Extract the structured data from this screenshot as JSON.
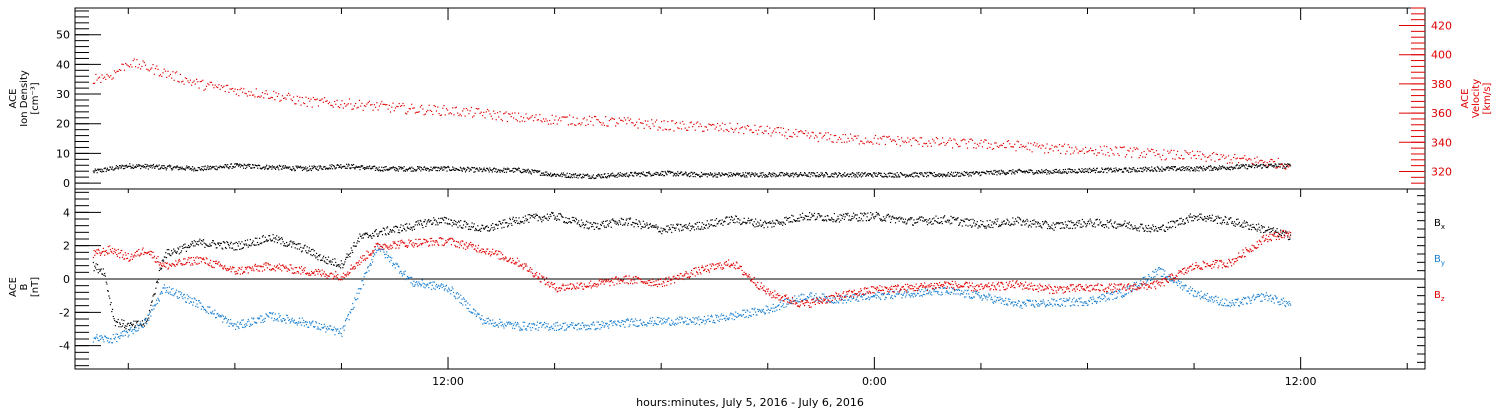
{
  "chart_data": [
    {
      "type": "scatter",
      "panel": "top",
      "ylabel_lines": [
        "ACE",
        "Ion Density",
        "[cm⁻³]"
      ],
      "ylim": [
        -2,
        59
      ],
      "yticks": [
        0,
        10,
        20,
        30,
        40,
        50
      ],
      "y2label_lines": [
        "ACE",
        "Velocity",
        "[km/s]"
      ],
      "y2lim": [
        308,
        432
      ],
      "y2ticks": [
        320,
        340,
        360,
        380,
        400,
        420
      ],
      "y2_color": "#e00000",
      "series": [
        {
          "name": "Ion Density",
          "axis": "left",
          "color": "#000000",
          "x_hours": [
            2,
            2.5,
            3,
            4,
            5,
            6,
            7,
            8,
            9,
            10,
            11,
            12,
            13,
            14,
            15,
            16,
            17,
            18,
            19,
            20,
            21,
            22,
            23,
            24,
            25,
            26,
            27,
            28,
            29,
            30,
            31,
            32,
            33,
            34,
            35,
            35.7
          ],
          "values": [
            4,
            5,
            6,
            5.5,
            5,
            6,
            5.5,
            5,
            6,
            5,
            5,
            5,
            4.5,
            4.5,
            3,
            2.5,
            3,
            3.5,
            3,
            3,
            3,
            3,
            3,
            3,
            3,
            3,
            3.5,
            4,
            4,
            4.5,
            4.5,
            5,
            5,
            5.5,
            6,
            6
          ]
        },
        {
          "name": "Velocity",
          "axis": "right",
          "color": "#e00000",
          "x_hours": [
            2,
            2.5,
            3,
            3.5,
            4,
            5,
            6,
            7,
            8,
            9,
            10,
            11,
            12,
            13,
            14,
            15,
            16,
            17,
            18,
            19,
            20,
            21,
            22,
            23,
            24,
            25,
            26,
            27,
            28,
            29,
            30,
            31,
            32,
            33,
            34,
            35,
            35.7
          ],
          "values": [
            384,
            386,
            395,
            392,
            388,
            380,
            376,
            373,
            368,
            367,
            365,
            363,
            362,
            360,
            357,
            356,
            355,
            354,
            352,
            351,
            350,
            348,
            345,
            343,
            342,
            341,
            340,
            339,
            338,
            336,
            335,
            334,
            332,
            331,
            329,
            327,
            325
          ]
        }
      ]
    },
    {
      "type": "scatter",
      "panel": "bottom",
      "ylabel_lines": [
        "ACE",
        "B",
        "[nT]"
      ],
      "ylim": [
        -5.4,
        5.4
      ],
      "yticks": [
        -4,
        -2,
        0,
        2,
        4
      ],
      "zero_line": true,
      "series": [
        {
          "name": "Bx",
          "color": "#000000",
          "x_hours": [
            2,
            2.3,
            2.6,
            3,
            3.5,
            4,
            5,
            6,
            7,
            8,
            8.5,
            9,
            9.5,
            10,
            10.5,
            11,
            11.5,
            12,
            13,
            14,
            15,
            16,
            17,
            18,
            19,
            20,
            21,
            22,
            23,
            24,
            25,
            26,
            27,
            28,
            29,
            30,
            31,
            32,
            33,
            34,
            35,
            35.7
          ],
          "values": [
            0.8,
            0.5,
            -2.5,
            -2.8,
            -2.6,
            1.5,
            2.2,
            2.0,
            2.5,
            1.8,
            1.2,
            0.9,
            2.5,
            2.8,
            3.0,
            3.2,
            3.5,
            3.5,
            3.0,
            3.6,
            3.8,
            3.2,
            3.5,
            3.0,
            3.2,
            3.6,
            3.3,
            3.8,
            3.7,
            3.8,
            3.5,
            3.6,
            3.3,
            3.5,
            3.2,
            3.4,
            3.3,
            3.0,
            3.8,
            3.5,
            3.0,
            2.6
          ]
        },
        {
          "name": "By",
          "color": "#1a7fd0",
          "x_hours": [
            2,
            2.5,
            3,
            3.5,
            4,
            5,
            6,
            7,
            8,
            9,
            10,
            11,
            12,
            13,
            14,
            15,
            16,
            17,
            18,
            19,
            20,
            21,
            22,
            23,
            24,
            25,
            26,
            27,
            28,
            29,
            30,
            31,
            32,
            33,
            34,
            35,
            35.7
          ],
          "values": [
            -3.5,
            -3.6,
            -3.2,
            -2.5,
            -0.5,
            -1.5,
            -2.8,
            -2.2,
            -2.6,
            -3.2,
            2.0,
            -0.2,
            -0.5,
            -2.5,
            -2.8,
            -2.8,
            -2.8,
            -2.6,
            -2.5,
            -2.5,
            -2.2,
            -1.8,
            -1.0,
            -1.2,
            -1.0,
            -0.8,
            -0.7,
            -1.0,
            -1.5,
            -1.4,
            -1.3,
            -0.8,
            0.5,
            -0.8,
            -1.5,
            -1.0,
            -1.5
          ]
        },
        {
          "name": "Bz",
          "color": "#e00000",
          "x_hours": [
            2,
            2.5,
            3,
            3.5,
            4,
            5,
            6,
            7,
            8,
            9,
            10,
            11,
            12,
            13,
            14,
            15,
            16,
            17,
            18,
            19,
            20,
            21,
            22,
            23,
            24,
            25,
            26,
            27,
            28,
            29,
            30,
            31,
            32,
            33,
            34,
            35,
            35.7
          ],
          "values": [
            1.5,
            1.8,
            1.3,
            1.8,
            0.8,
            1.2,
            0.5,
            0.8,
            0.5,
            0.2,
            2.0,
            2.2,
            2.3,
            1.8,
            1.0,
            -0.5,
            -0.3,
            0.0,
            -0.2,
            0.5,
            1.0,
            -0.8,
            -1.5,
            -1.0,
            -0.6,
            -0.5,
            -0.3,
            -0.5,
            -0.3,
            -0.6,
            -0.5,
            -0.5,
            -0.3,
            0.8,
            1.0,
            2.5,
            2.8
          ]
        }
      ],
      "legend": [
        {
          "label": "B",
          "sub": "x",
          "color": "#000000"
        },
        {
          "label": "B",
          "sub": "y",
          "color": "#1a7fd0"
        },
        {
          "label": "B",
          "sub": "z",
          "color": "#e00000"
        }
      ]
    }
  ],
  "x_axis": {
    "xlim_hours": [
      1.5,
      39.5
    ],
    "tick_labels": [
      {
        "hour": 12,
        "label": "12:00"
      },
      {
        "hour": 24,
        "label": "0:00"
      },
      {
        "hour": 36,
        "label": "12:00"
      }
    ],
    "xlabel": "hours:minutes, July  5, 2016 - July  6, 2016"
  }
}
